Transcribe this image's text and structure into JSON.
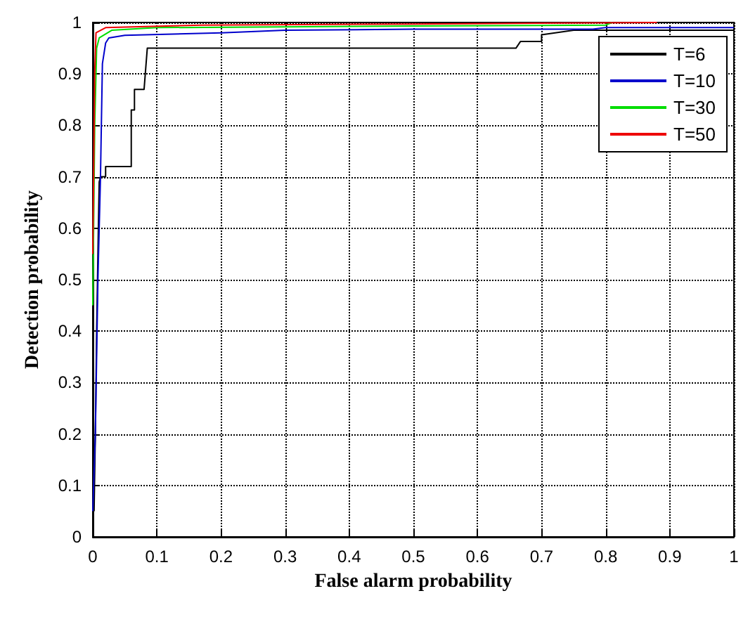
{
  "chart_data": {
    "type": "line",
    "xlabel": "False alarm probability",
    "ylabel": "Detection probability",
    "xlim": [
      0,
      1
    ],
    "ylim": [
      0,
      1
    ],
    "xticks": [
      0,
      0.1,
      0.2,
      0.3,
      0.4,
      0.5,
      0.6,
      0.7,
      0.8,
      0.9,
      1
    ],
    "yticks": [
      0,
      0.1,
      0.2,
      0.3,
      0.4,
      0.5,
      0.6,
      0.7,
      0.8,
      0.9,
      1
    ],
    "grid": true,
    "legend": "top right",
    "line_style": "solid",
    "marker": "none",
    "series": [
      {
        "name": "T=6",
        "color": "#000000",
        "x": [
          0.002,
          0.004,
          0.006,
          0.008,
          0.01,
          0.012,
          0.014,
          0.02,
          0.02,
          0.06,
          0.06,
          0.065,
          0.065,
          0.08,
          0.085,
          0.66,
          0.667,
          0.7,
          0.7,
          0.75,
          1
        ],
        "values": [
          0.05,
          0.2,
          0.4,
          0.55,
          0.69,
          0.7,
          0.7,
          0.7,
          0.72,
          0.72,
          0.83,
          0.83,
          0.87,
          0.87,
          0.95,
          0.95,
          0.963,
          0.963,
          0.976,
          0.985,
          0.985
        ]
      },
      {
        "name": "T=10",
        "color": "#0000cc",
        "x": [
          0,
          0.004,
          0.008,
          0.012,
          0.015,
          0.02,
          0.025,
          0.05,
          0.2,
          0.3,
          0.5,
          0.78,
          0.8,
          1
        ],
        "values": [
          0.05,
          0.2,
          0.5,
          0.7,
          0.92,
          0.96,
          0.97,
          0.975,
          0.98,
          0.985,
          0.987,
          0.987,
          0.99,
          0.99
        ]
      },
      {
        "name": "T=30",
        "color": "#00dd00",
        "x": [
          0,
          0.003,
          0.006,
          0.01,
          0.03,
          0.1,
          0.5,
          0.8,
          0.81
        ],
        "values": [
          0.45,
          0.8,
          0.95,
          0.97,
          0.985,
          0.99,
          0.993,
          0.995,
          1
        ]
      },
      {
        "name": "T=50",
        "color": "#ee0000",
        "x": [
          0,
          0.003,
          0.005,
          0.02,
          0.17,
          0.5,
          0.88
        ],
        "values": [
          0.55,
          0.9,
          0.98,
          0.99,
          0.995,
          0.997,
          1
        ]
      }
    ]
  }
}
